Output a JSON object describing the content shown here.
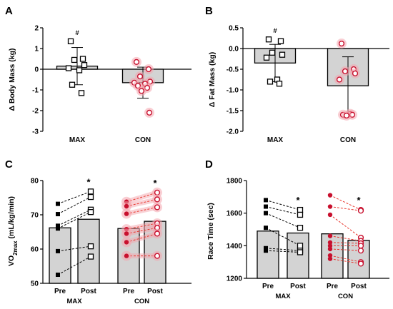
{
  "chart_data": [
    {
      "type": "bar",
      "panel": "A",
      "ylabel": "Δ Body Mass (kg)",
      "ylim": [
        -3,
        2
      ],
      "yticks": [
        "2",
        "1",
        "0",
        "-1",
        "-2",
        "-3"
      ],
      "categories": [
        "MAX",
        "CON"
      ],
      "series": [
        {
          "values": [
            0.15,
            -0.65
          ],
          "error": [
            0.9,
            0.75
          ],
          "points": [
            [
              1.35,
              0.5,
              0.45,
              0.2,
              0.05,
              -0.05,
              -0.75,
              -1.15
            ],
            [
              0.35,
              0.0,
              -0.35,
              -0.6,
              -0.65,
              -0.7,
              -0.8,
              -0.9,
              -1.05,
              -2.1
            ]
          ]
        }
      ],
      "annotations": [
        {
          "category": "MAX",
          "text": "#"
        }
      ]
    },
    {
      "type": "bar",
      "panel": "B",
      "ylabel": "Δ Fat Mass (kg)",
      "ylim": [
        -2.0,
        0.5
      ],
      "yticks": [
        "0.5",
        "0.0",
        "-0.5",
        "-1.0",
        "-1.5",
        "-2.0"
      ],
      "categories": [
        "MAX",
        "CON"
      ],
      "series": [
        {
          "values": [
            -0.35,
            -0.9
          ],
          "error": [
            0.45,
            0.7
          ],
          "points": [
            [
              0.22,
              0.18,
              -0.1,
              -0.15,
              -0.22,
              -0.75,
              -0.8,
              -0.85
            ],
            [
              0.12,
              -0.5,
              -0.55,
              -0.6,
              -0.75,
              -1.58,
              -1.6,
              -1.6,
              -1.62
            ]
          ]
        }
      ],
      "annotations": [
        {
          "category": "MAX",
          "text": "#"
        }
      ]
    },
    {
      "type": "bar",
      "panel": "C",
      "ylabel_main": "VO",
      "ylabel_sub": "2max",
      "ylabel_rest": " (mL/kg/min)",
      "ylim": [
        50,
        80
      ],
      "yticks": [
        "80",
        "70",
        "60",
        "50"
      ],
      "categories": [
        "Pre",
        "Post",
        "Pre",
        "Post"
      ],
      "groups": [
        "MAX",
        "CON"
      ],
      "series": [
        {
          "name": "MAX",
          "pre_mean": 66.2,
          "post_mean": 68.7,
          "pre": [
            73.2,
            70.2,
            66.8,
            66.0,
            59.4,
            52.5
          ],
          "post": [
            76.8,
            75.2,
            71.5,
            70.8,
            60.8,
            57.8
          ]
        },
        {
          "name": "CON",
          "pre_mean": 66.0,
          "post_mean": 68.1,
          "pre": [
            73.8,
            72.5,
            70.3,
            65.8,
            64.5,
            62.0,
            58.0
          ],
          "post": [
            76.5,
            74.5,
            72.2,
            67.5,
            66.2,
            64.5,
            58.0
          ]
        }
      ],
      "annotations": [
        {
          "category": "MAX Post",
          "text": "*"
        },
        {
          "category": "CON Post",
          "text": "*"
        }
      ]
    },
    {
      "type": "bar",
      "panel": "D",
      "ylabel": "Race Time (sec)",
      "ylim": [
        1200,
        1800
      ],
      "yticks": [
        "1800",
        "1600",
        "1400",
        "1200"
      ],
      "categories": [
        "Pre",
        "Post",
        "Pre",
        "Post"
      ],
      "groups": [
        "MAX",
        "CON"
      ],
      "series": [
        {
          "name": "MAX",
          "pre_mean": 1490,
          "post_mean": 1478,
          "pre": [
            1680,
            1640,
            1600,
            1510,
            1385,
            1370
          ],
          "post": [
            1620,
            1590,
            1510,
            1400,
            1370,
            1360
          ]
        },
        {
          "name": "CON",
          "pre_mean": 1473,
          "post_mean": 1433,
          "pre": [
            1710,
            1640,
            1590,
            1460,
            1420,
            1400,
            1380,
            1340,
            1320
          ],
          "post": [
            1620,
            1615,
            1450,
            1430,
            1415,
            1400,
            1370,
            1300,
            1290
          ]
        }
      ],
      "annotations": [
        {
          "category": "MAX Post",
          "text": "*"
        },
        {
          "category": "CON Post",
          "text": "*"
        }
      ]
    }
  ],
  "colors": {
    "bar_fill": "#d3d3d3",
    "bar_stroke": "#000000",
    "max_marker": "#000000",
    "con_marker": "#c8102e",
    "con_fill": "#f4a6ae",
    "con_line": "#e8352c"
  }
}
